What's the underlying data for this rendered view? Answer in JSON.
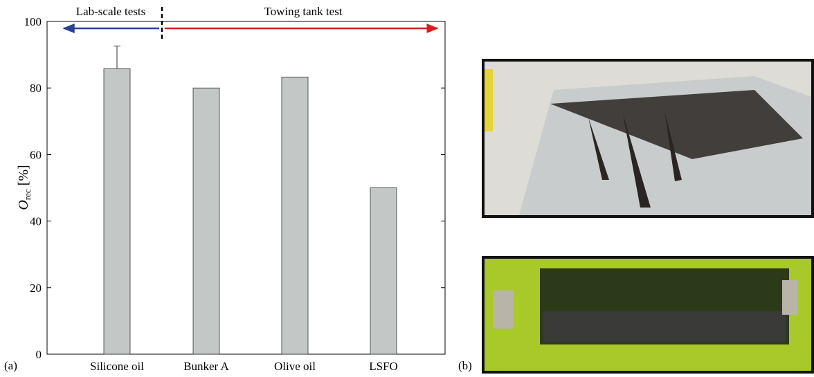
{
  "panels": [
    "(a)",
    "(b)"
  ],
  "chart_data": {
    "type": "bar",
    "ylabel": {
      "symbol": "O",
      "subscript": "rec",
      "unit": "[%]"
    },
    "annotations": [
      "Lab-scale tests",
      "Towing tank test"
    ],
    "categories": [
      "Silicone oil",
      "Bunker A",
      "Olive oil",
      "LSFO"
    ],
    "values": [
      85.8,
      80,
      83.3,
      50
    ],
    "errors": [
      6.8,
      null,
      null,
      null
    ],
    "color": "#c3c7c6",
    "ylim": [
      0,
      100
    ],
    "yticks": [
      0,
      20,
      40,
      60,
      80,
      100
    ]
  }
}
